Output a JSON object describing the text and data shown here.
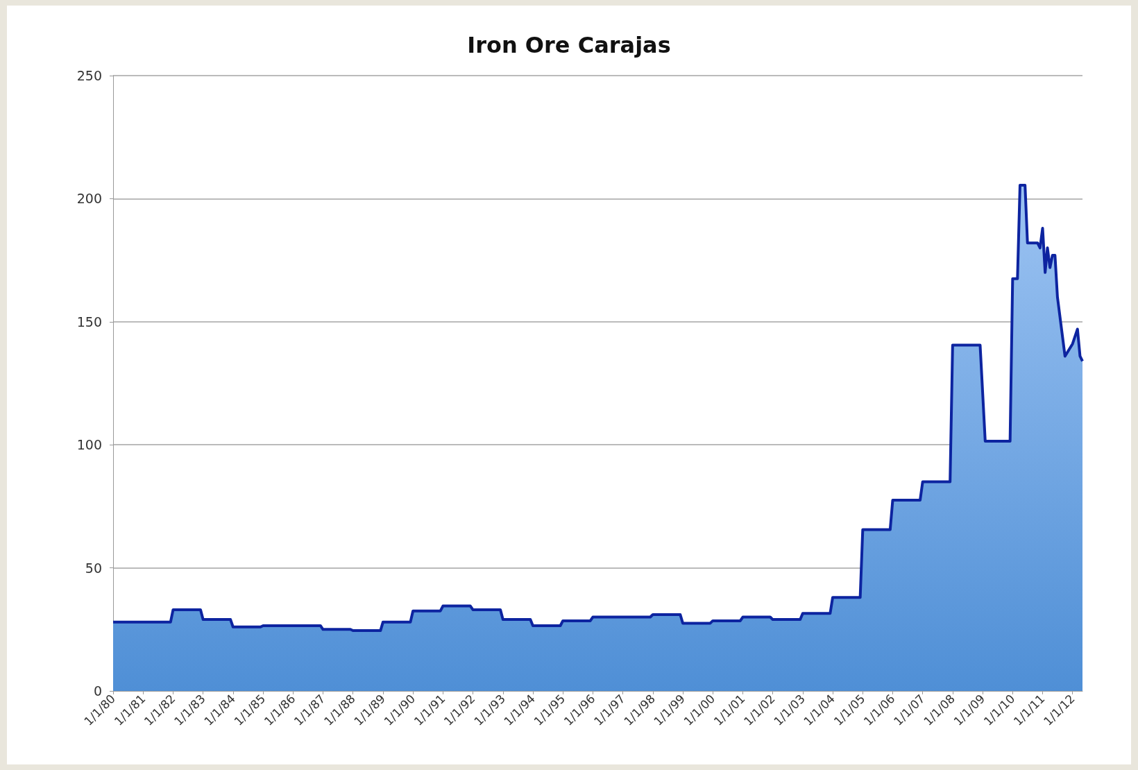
{
  "chart_data": {
    "type": "area",
    "title": "Iron Ore Carajas",
    "x": [
      "1980-01",
      "1981-12",
      "1982-01",
      "1982-12",
      "1983-01",
      "1983-12",
      "1984-01",
      "1984-12",
      "1985-01",
      "1986-12",
      "1987-01",
      "1987-12",
      "1988-01",
      "1988-12",
      "1989-01",
      "1989-12",
      "1990-01",
      "1990-12",
      "1991-01",
      "1991-12",
      "1992-01",
      "1992-12",
      "1993-01",
      "1993-12",
      "1994-01",
      "1994-12",
      "1995-01",
      "1995-12",
      "1996-01",
      "1997-12",
      "1998-01",
      "1998-12",
      "1999-01",
      "1999-12",
      "2000-01",
      "2000-12",
      "2001-01",
      "2001-12",
      "2002-01",
      "2002-12",
      "2003-01",
      "2003-12",
      "2004-01",
      "2004-12",
      "2005-01",
      "2005-12",
      "2006-01",
      "2006-12",
      "2007-01",
      "2007-12",
      "2008-01",
      "2008-12",
      "2009-02",
      "2009-12",
      "2010-01",
      "2010-03",
      "2010-04",
      "2010-06",
      "2010-07",
      "2010-11",
      "2010-12",
      "2011-01",
      "2011-02",
      "2011-03",
      "2011-04",
      "2011-05",
      "2011-06",
      "2011-07",
      "2011-10",
      "2012-01",
      "2012-03",
      "2012-04",
      "2012-05"
    ],
    "series": [
      {
        "color": "#0d24a0",
        "values": [
          28,
          28,
          33,
          33,
          29,
          29,
          26,
          26,
          26.5,
          26.5,
          25,
          25,
          24.5,
          24.5,
          28,
          28,
          32.5,
          32.5,
          34.5,
          34.5,
          33,
          33,
          29,
          29,
          26.5,
          26.5,
          28.5,
          28.5,
          30,
          30,
          31,
          31,
          27.5,
          27.5,
          28.5,
          28.5,
          30,
          30,
          29,
          29,
          31.5,
          31.5,
          38,
          38,
          65.5,
          65.5,
          77.5,
          77.5,
          85,
          85,
          140.5,
          140.5,
          101.5,
          101.5,
          167.5,
          167.5,
          205.5,
          205.5,
          182,
          182,
          180,
          188,
          170,
          180,
          172,
          177,
          177,
          160,
          136,
          141,
          147,
          136,
          134
        ]
      }
    ],
    "xlim": [
      "1980-01-01",
      "2012-05-01"
    ],
    "xticks": [
      {
        "value": "1980-01-01",
        "label": "1/1/80"
      },
      {
        "value": "1981-01-01",
        "label": "1/1/81"
      },
      {
        "value": "1982-01-01",
        "label": "1/1/82"
      },
      {
        "value": "1983-01-01",
        "label": "1/1/83"
      },
      {
        "value": "1984-01-01",
        "label": "1/1/84"
      },
      {
        "value": "1985-01-01",
        "label": "1/1/85"
      },
      {
        "value": "1986-01-01",
        "label": "1/1/86"
      },
      {
        "value": "1987-01-01",
        "label": "1/1/87"
      },
      {
        "value": "1988-01-01",
        "label": "1/1/88"
      },
      {
        "value": "1989-01-01",
        "label": "1/1/89"
      },
      {
        "value": "1990-01-01",
        "label": "1/1/90"
      },
      {
        "value": "1991-01-01",
        "label": "1/1/91"
      },
      {
        "value": "1992-01-01",
        "label": "1/1/92"
      },
      {
        "value": "1993-01-01",
        "label": "1/1/93"
      },
      {
        "value": "1994-01-01",
        "label": "1/1/94"
      },
      {
        "value": "1995-01-01",
        "label": "1/1/95"
      },
      {
        "value": "1996-01-01",
        "label": "1/1/96"
      },
      {
        "value": "1997-01-01",
        "label": "1/1/97"
      },
      {
        "value": "1998-01-01",
        "label": "1/1/98"
      },
      {
        "value": "1999-01-01",
        "label": "1/1/99"
      },
      {
        "value": "2000-01-01",
        "label": "1/1/00"
      },
      {
        "value": "2001-01-01",
        "label": "1/1/01"
      },
      {
        "value": "2002-01-01",
        "label": "1/1/02"
      },
      {
        "value": "2003-01-01",
        "label": "1/1/03"
      },
      {
        "value": "2004-01-01",
        "label": "1/1/04"
      },
      {
        "value": "2005-01-01",
        "label": "1/1/05"
      },
      {
        "value": "2006-01-01",
        "label": "1/1/06"
      },
      {
        "value": "2007-01-01",
        "label": "1/1/07"
      },
      {
        "value": "2008-01-01",
        "label": "1/1/08"
      },
      {
        "value": "2009-01-01",
        "label": "1/1/09"
      },
      {
        "value": "2010-01-01",
        "label": "1/1/10"
      },
      {
        "value": "2011-01-01",
        "label": "1/1/11"
      },
      {
        "value": "2012-01-01",
        "label": "1/1/12"
      }
    ],
    "ylim": [
      0,
      250
    ],
    "yticks": [
      0,
      50,
      100,
      150,
      200,
      250
    ],
    "grid": "y",
    "marker": "none"
  }
}
